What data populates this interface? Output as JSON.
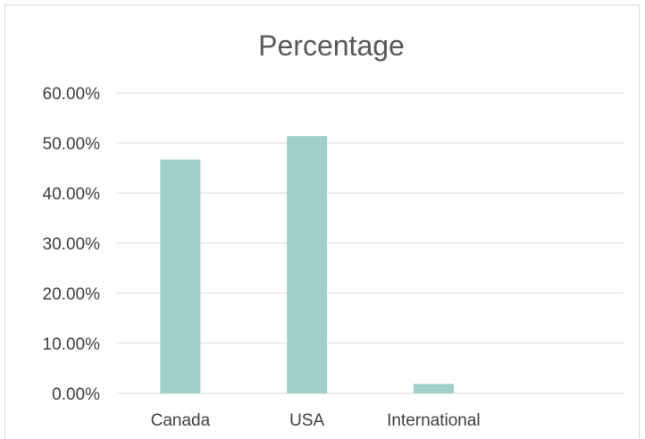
{
  "chart_data": {
    "type": "bar",
    "title": "Percentage",
    "categories": [
      "Canada",
      "USA",
      "International"
    ],
    "values": [
      46.7,
      51.4,
      1.9
    ],
    "ylim": [
      0,
      60
    ],
    "yticks": [
      "0.00%",
      "10.00%",
      "20.00%",
      "30.00%",
      "40.00%",
      "50.00%",
      "60.00%"
    ],
    "ytick_values": [
      0,
      10,
      20,
      30,
      40,
      50,
      60
    ],
    "grid": true,
    "legend": "none",
    "bar_color": "#a0cfca",
    "xlabel": "",
    "ylabel": ""
  }
}
